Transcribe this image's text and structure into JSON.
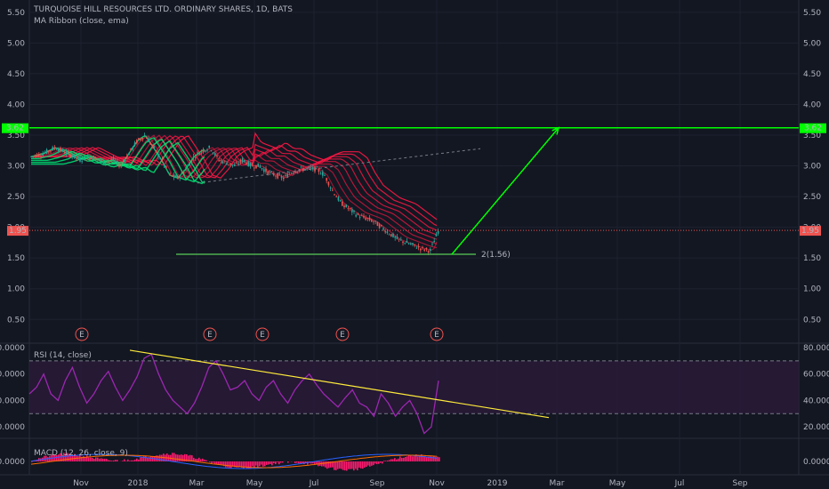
{
  "header": {
    "title": "TURQUOISE HILL RESOURCES LTD. ORDINARY SHARES, 1D, BATS",
    "indicator": "MA Ribbon (close, ema)"
  },
  "chart_data": [
    {
      "type": "line",
      "pane": "price",
      "y_ticks": [
        "5.50",
        "5.00",
        "4.50",
        "4.00",
        "3.50",
        "3.00",
        "2.50",
        "2.00",
        "1.50",
        "1.00",
        "0.50"
      ],
      "ylim": [
        0.2,
        5.7
      ],
      "resistance_label": "3.62",
      "current_label": "1.95",
      "support_label": "2(1.56)",
      "resistance": 3.62,
      "current": 1.95,
      "support": 1.56,
      "earnings_label": "E",
      "earnings_count": 5,
      "price_path_x": [
        0,
        0.03,
        0.06,
        0.09,
        0.12,
        0.15,
        0.18,
        0.2,
        0.22,
        0.24,
        0.26,
        0.28,
        0.3,
        0.32,
        0.34,
        0.36,
        0.38,
        0.4,
        0.42,
        0.44,
        0.46,
        0.48,
        0.5,
        0.52,
        0.54,
        0.56,
        0.58,
        0.6,
        0.62,
        0.64,
        0.66,
        0.68,
        0.7,
        0.72,
        0.74,
        0.76,
        0.78,
        0.8,
        0.82,
        0.84,
        0.86,
        0.88,
        0.9,
        0.92,
        0.94,
        0.96,
        0.98,
        1.0
      ],
      "price_path_y": [
        3.15,
        3.2,
        3.3,
        3.2,
        3.1,
        3.15,
        3.05,
        3.1,
        3.0,
        3.2,
        3.4,
        3.5,
        3.3,
        3.1,
        2.85,
        2.8,
        2.95,
        3.15,
        3.25,
        3.3,
        3.1,
        3.05,
        3.0,
        3.1,
        3.0,
        3.0,
        2.9,
        2.85,
        2.8,
        2.9,
        2.95,
        2.95,
        2.95,
        2.85,
        2.6,
        2.4,
        2.3,
        2.2,
        2.15,
        2.1,
        2.0,
        1.9,
        1.8,
        1.75,
        1.7,
        1.65,
        1.62,
        1.95
      ]
    },
    {
      "type": "line",
      "pane": "rsi",
      "legend": "RSI (14, close)",
      "y_ticks": [
        "80.0000",
        "60.0000",
        "40.0000",
        "20.0000"
      ],
      "ylim": [
        12,
        82
      ],
      "values": [
        45,
        50,
        60,
        45,
        40,
        55,
        65,
        50,
        38,
        45,
        55,
        62,
        50,
        40,
        48,
        58,
        72,
        75,
        60,
        48,
        40,
        35,
        30,
        38,
        50,
        65,
        70,
        60,
        48,
        50,
        55,
        45,
        40,
        50,
        55,
        45,
        38,
        48,
        55,
        60,
        52,
        45,
        40,
        35,
        42,
        48,
        38,
        35,
        28,
        45,
        38,
        28,
        35,
        40,
        30,
        15,
        20,
        55
      ]
    },
    {
      "type": "bar",
      "pane": "macd",
      "legend": "MACD (12, 26, close, 9)",
      "y_ticks": [
        "0.0000"
      ]
    }
  ],
  "x_axis": {
    "labels": [
      "Nov",
      "2018",
      "Mar",
      "May",
      "Jul",
      "Sep",
      "Nov",
      "2019",
      "Mar",
      "May",
      "Jul",
      "Sep"
    ]
  },
  "colors": {
    "background": "#131722",
    "up": "#26a69a",
    "down": "#ef5350",
    "ribbon_bull": "#00e676",
    "ribbon_bear": "#ff1744",
    "resistance": "#00ff00",
    "support": "#4caf50",
    "rsi": "#9c27b0",
    "rsi_band": "#2a1a3a",
    "trendline": "#ffeb3b",
    "macd_hist": "#ff1a6e"
  }
}
